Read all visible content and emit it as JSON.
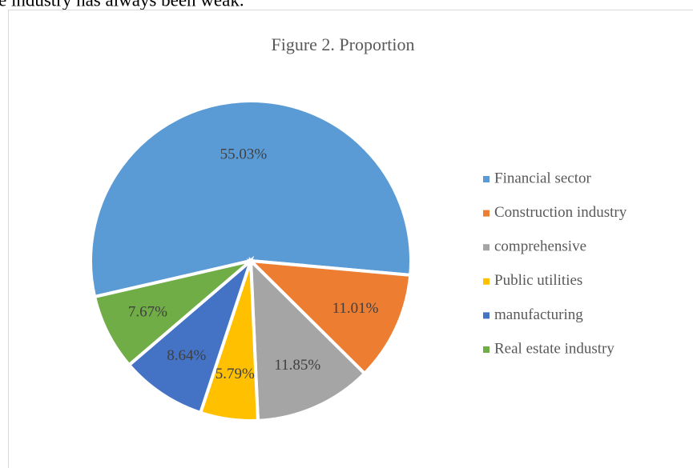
{
  "body_text": "e industry has always been weak.",
  "chart_data": {
    "type": "pie",
    "title": "Figure 2. Proportion",
    "categories": [
      "Financial sector",
      "Construction industry",
      "comprehensive",
      "Public utilities",
      "manufacturing",
      "Real estate industry"
    ],
    "values": [
      55.03,
      11.01,
      11.85,
      5.79,
      8.64,
      7.67
    ],
    "value_labels": [
      "55.03%",
      "11.01%",
      "11.85%",
      "5.79%",
      "8.64%",
      "7.67%"
    ],
    "colors": [
      "#5b9bd5",
      "#ed7d31",
      "#a5a5a5",
      "#ffc000",
      "#4472c4",
      "#70ad47"
    ],
    "legend": "right"
  }
}
